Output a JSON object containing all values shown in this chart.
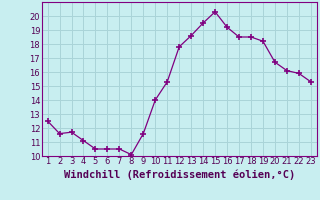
{
  "x": [
    1,
    2,
    3,
    4,
    5,
    6,
    7,
    8,
    9,
    10,
    11,
    12,
    13,
    14,
    15,
    16,
    17,
    18,
    19,
    20,
    21,
    22,
    23
  ],
  "y": [
    12.5,
    11.6,
    11.7,
    11.1,
    10.5,
    10.5,
    10.5,
    10.1,
    11.6,
    14.0,
    15.3,
    17.8,
    18.6,
    19.5,
    20.3,
    19.2,
    18.5,
    18.5,
    18.2,
    16.7,
    16.1,
    15.9,
    15.3
  ],
  "line_color": "#800080",
  "marker": "+",
  "marker_size": 5,
  "marker_lw": 1.2,
  "xlabel": "Windchill (Refroidissement éolien,°C)",
  "xlabel_fontsize": 7.5,
  "ylim": [
    10,
    21
  ],
  "xlim_left": 0.5,
  "xlim_right": 23.5,
  "yticks": [
    10,
    11,
    12,
    13,
    14,
    15,
    16,
    17,
    18,
    19,
    20
  ],
  "xticks": [
    1,
    2,
    3,
    4,
    5,
    6,
    7,
    8,
    9,
    10,
    11,
    12,
    13,
    14,
    15,
    16,
    17,
    18,
    19,
    20,
    21,
    22,
    23
  ],
  "bg_color": "#c8eef0",
  "grid_color": "#aad4d8",
  "tick_fontsize": 6.0,
  "line_width": 0.9,
  "spine_color": "#800080"
}
